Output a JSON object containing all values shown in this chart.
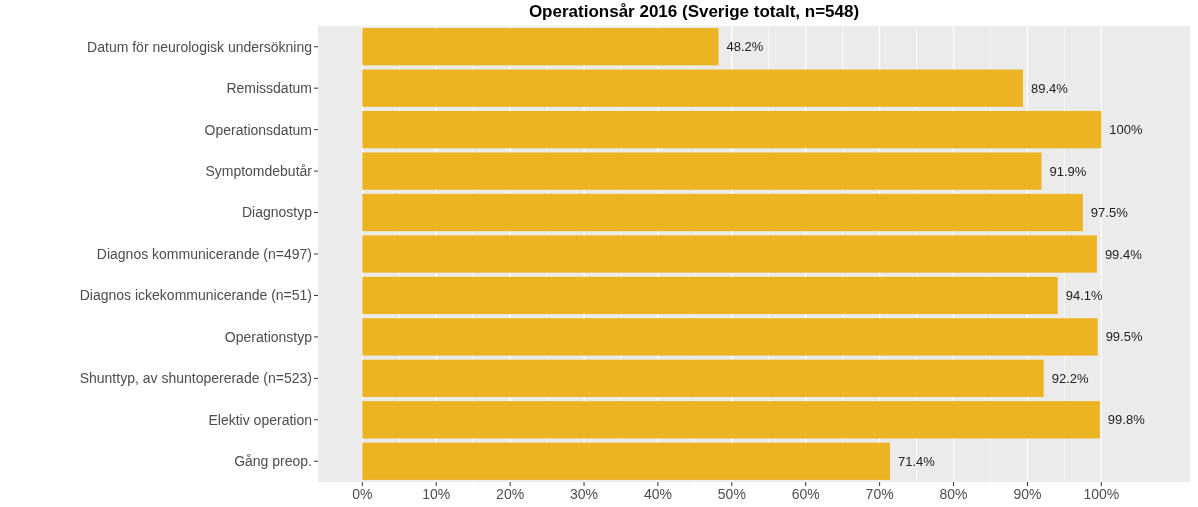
{
  "chart_data": {
    "type": "bar",
    "orientation": "horizontal",
    "title": "Operationsår 2016 (Sverige totalt, n=548)",
    "categories": [
      "Datum för neurologisk undersökning",
      "Remissdatum",
      "Operationsdatum",
      "Symptomdebutår",
      "Diagnostyp",
      "Diagnos kommunicerande (n=497)",
      "Diagnos ickekommunicerande (n=51)",
      "Operationstyp",
      "Shunttyp, av shuntopererade (n=523)",
      "Elektiv operation",
      "Gång preop."
    ],
    "values": [
      48.2,
      89.4,
      100,
      91.9,
      97.5,
      99.4,
      94.1,
      99.5,
      92.2,
      99.8,
      71.4
    ],
    "value_labels": [
      "48.2%",
      "89.4%",
      "100%",
      "91.9%",
      "97.5%",
      "99.4%",
      "94.1%",
      "99.5%",
      "92.2%",
      "99.8%",
      "71.4%"
    ],
    "color": "#ecb322",
    "xlim": [
      -6,
      112
    ],
    "xticks": [
      {
        "value": 0,
        "label": "0%"
      },
      {
        "value": 10,
        "label": "10%"
      },
      {
        "value": 20,
        "label": "20%"
      },
      {
        "value": 30,
        "label": "30%"
      },
      {
        "value": 40,
        "label": "40%"
      },
      {
        "value": 50,
        "label": "50%"
      },
      {
        "value": 60,
        "label": "60%"
      },
      {
        "value": 70,
        "label": "70%"
      },
      {
        "value": 80,
        "label": "80%"
      },
      {
        "value": 90,
        "label": "90%"
      },
      {
        "value": 100,
        "label": "100%"
      }
    ],
    "grid": "x"
  }
}
